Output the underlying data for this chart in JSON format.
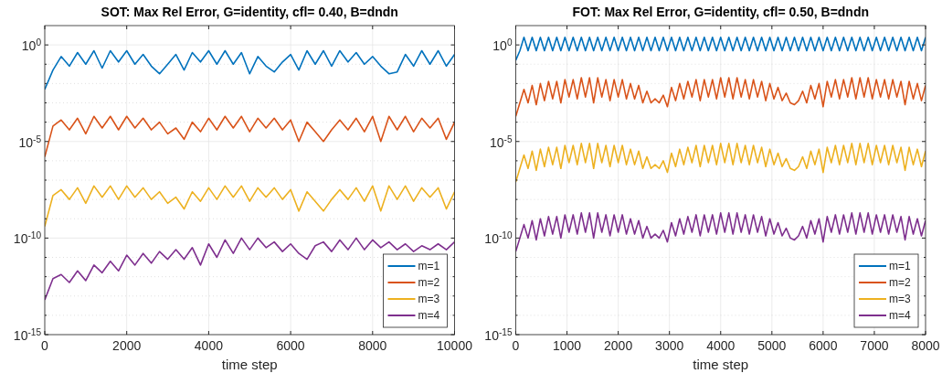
{
  "chart_data": [
    {
      "type": "line",
      "title": "SOT: Max Rel Error, G=identity, cfl= 0.40, B=dndn",
      "xlabel": "time step",
      "log": "y",
      "grid": true,
      "legend": "bottom right",
      "xlim": [
        0,
        10000
      ],
      "xticks": [
        0,
        2000,
        4000,
        6000,
        8000,
        10000
      ],
      "ylim": [
        1e-15,
        10
      ],
      "yticks": [
        {
          "value": 1e-15,
          "label": "10$^{-15}$"
        },
        {
          "value": 1e-14,
          "label": null
        },
        {
          "value": 1e-13,
          "label": null
        },
        {
          "value": 1e-12,
          "label": null
        },
        {
          "value": 1e-11,
          "label": null
        },
        {
          "value": 1e-10,
          "label": "10$^{-10}$"
        },
        {
          "value": 1e-09,
          "label": null
        },
        {
          "value": 1e-08,
          "label": null
        },
        {
          "value": 1e-07,
          "label": null
        },
        {
          "value": 1e-06,
          "label": null
        },
        {
          "value": 1e-05,
          "label": "10$^{-5}$"
        },
        {
          "value": 0.0001,
          "label": null
        },
        {
          "value": 0.001,
          "label": null
        },
        {
          "value": 0.01,
          "label": null
        },
        {
          "value": 0.1,
          "label": null
        },
        {
          "value": 1,
          "label": "10$^{0}$"
        }
      ],
      "x": [
        0,
        200,
        400,
        600,
        800,
        1000,
        1200,
        1400,
        1600,
        1800,
        2000,
        2200,
        2400,
        2600,
        2800,
        3000,
        3200,
        3400,
        3600,
        3800,
        4000,
        4200,
        4400,
        4600,
        4800,
        5000,
        5200,
        5400,
        5600,
        5800,
        6000,
        6200,
        6400,
        6600,
        6800,
        7000,
        7200,
        7400,
        7600,
        7800,
        8000,
        8200,
        8400,
        8600,
        8800,
        9000,
        9200,
        9400,
        9600,
        9800,
        10000
      ],
      "series": [
        {
          "name": "m=1",
          "color": "#0072bd",
          "values": [
            0.005,
            0.05,
            0.25,
            0.08,
            0.4,
            0.1,
            0.5,
            0.063,
            0.5,
            0.13,
            0.5,
            0.1,
            0.32,
            0.08,
            0.032,
            0.1,
            0.32,
            0.05,
            0.4,
            0.13,
            0.5,
            0.1,
            0.5,
            0.1,
            0.4,
            0.032,
            0.25,
            0.08,
            0.04,
            0.13,
            0.32,
            0.05,
            0.5,
            0.1,
            0.5,
            0.08,
            0.5,
            0.13,
            0.4,
            0.1,
            0.25,
            0.08,
            0.032,
            0.04,
            0.32,
            0.08,
            0.5,
            0.1,
            0.5,
            0.08,
            0.32
          ]
        },
        {
          "name": "m=2",
          "color": "#d95319",
          "values": [
            1.6e-06,
            6.3e-05,
            0.00013,
            4e-05,
            0.00016,
            2.5e-05,
            0.0002,
            5e-05,
            0.0002,
            4e-05,
            0.0002,
            5e-05,
            0.00016,
            4e-05,
            0.0001,
            2.5e-05,
            5e-05,
            1.3e-05,
            0.0001,
            3.2e-05,
            0.00016,
            4e-05,
            0.0002,
            5e-05,
            0.0002,
            3.2e-05,
            0.00016,
            5e-05,
            0.00016,
            4e-05,
            0.00013,
            1e-05,
            0.0001,
            3.2e-05,
            1e-05,
            4e-05,
            0.00013,
            4e-05,
            0.00016,
            3.2e-05,
            0.0002,
            1e-05,
            0.0002,
            4e-05,
            0.0002,
            3.2e-05,
            0.00016,
            5e-05,
            0.00016,
            1.3e-05,
            0.0001
          ]
        },
        {
          "name": "m=3",
          "color": "#edb120",
          "values": [
            4e-10,
            1.6e-08,
            3.2e-08,
            1e-08,
            4e-08,
            6.3e-09,
            5e-08,
            1.3e-08,
            5e-08,
            1e-08,
            5e-08,
            1.3e-08,
            4e-08,
            1e-08,
            2.5e-08,
            6.3e-09,
            1.3e-08,
            3.2e-09,
            2.5e-08,
            8e-09,
            4e-08,
            1e-08,
            5e-08,
            1.3e-08,
            5e-08,
            8e-09,
            4e-08,
            1.3e-08,
            4e-08,
            1e-08,
            3.2e-08,
            2.5e-09,
            2.5e-08,
            8e-09,
            2.5e-09,
            1e-08,
            3.2e-08,
            1e-08,
            4e-08,
            8e-09,
            5e-08,
            2.5e-09,
            5e-08,
            1e-08,
            5e-08,
            8e-09,
            4e-08,
            1.3e-08,
            4e-08,
            3.2e-09,
            2.5e-08
          ]
        },
        {
          "name": "m=4",
          "color": "#7e2f8e",
          "values": [
            6.3e-14,
            8e-13,
            1.3e-12,
            5e-13,
            2e-12,
            6.3e-13,
            4e-12,
            1.6e-12,
            6.3e-12,
            2e-12,
            1.3e-11,
            4e-12,
            1.6e-11,
            5e-12,
            2e-11,
            8e-12,
            2.5e-11,
            8e-12,
            3.2e-11,
            4e-12,
            5e-11,
            1e-11,
            8e-11,
            1.6e-11,
            1e-10,
            2.5e-11,
            1e-10,
            3.2e-11,
            6.3e-11,
            2e-11,
            5e-11,
            1.6e-11,
            8e-12,
            4e-11,
            6.3e-11,
            2e-11,
            8e-11,
            2.5e-11,
            1e-10,
            2.5e-11,
            8e-11,
            3.2e-11,
            6.3e-11,
            2.5e-11,
            5e-11,
            2e-11,
            4e-11,
            2.5e-11,
            5e-11,
            2.5e-11,
            6.3e-11
          ]
        }
      ]
    },
    {
      "type": "line",
      "title": "FOT: Max Rel Error, G=identity, cfl= 0.50, B=dndn",
      "xlabel": "time step",
      "log": "y",
      "grid": true,
      "legend": "bottom right",
      "xlim": [
        0,
        8000
      ],
      "xticks": [
        0,
        1000,
        2000,
        3000,
        4000,
        5000,
        6000,
        7000,
        8000
      ],
      "ylim": [
        1e-15,
        10
      ],
      "yticks": [
        {
          "value": 1e-15,
          "label": "10$^{-15}$"
        },
        {
          "value": 1e-14,
          "label": null
        },
        {
          "value": 1e-13,
          "label": null
        },
        {
          "value": 1e-12,
          "label": null
        },
        {
          "value": 1e-11,
          "label": null
        },
        {
          "value": 1e-10,
          "label": "10$^{-10}$"
        },
        {
          "value": 1e-09,
          "label": null
        },
        {
          "value": 1e-08,
          "label": null
        },
        {
          "value": 1e-07,
          "label": null
        },
        {
          "value": 1e-06,
          "label": null
        },
        {
          "value": 1e-05,
          "label": "10$^{-5}$"
        },
        {
          "value": 0.0001,
          "label": null
        },
        {
          "value": 0.001,
          "label": null
        },
        {
          "value": 0.01,
          "label": null
        },
        {
          "value": 0.1,
          "label": null
        },
        {
          "value": 1,
          "label": "10$^{0}$"
        }
      ],
      "x": [
        0,
        80,
        160,
        240,
        320,
        400,
        480,
        560,
        640,
        720,
        800,
        880,
        960,
        1040,
        1120,
        1200,
        1280,
        1360,
        1440,
        1520,
        1600,
        1680,
        1760,
        1840,
        1920,
        2000,
        2080,
        2160,
        2240,
        2320,
        2400,
        2480,
        2560,
        2640,
        2720,
        2800,
        2880,
        2960,
        3040,
        3120,
        3200,
        3280,
        3360,
        3440,
        3520,
        3600,
        3680,
        3760,
        3840,
        3920,
        4000,
        4080,
        4160,
        4240,
        4320,
        4400,
        4480,
        4560,
        4640,
        4720,
        4800,
        4880,
        4960,
        5040,
        5120,
        5200,
        5280,
        5360,
        5440,
        5520,
        5600,
        5680,
        5760,
        5840,
        5920,
        6000,
        6080,
        6160,
        6240,
        6320,
        6400,
        6480,
        6560,
        6640,
        6720,
        6800,
        6880,
        6960,
        7040,
        7120,
        7200,
        7280,
        7360,
        7440,
        7520,
        7600,
        7680,
        7760,
        7840,
        7920,
        8000
      ],
      "series": [
        {
          "name": "m=1",
          "color": "#0072bd",
          "values": [
            0.16,
            0.5,
            2.5,
            0.5,
            2.5,
            0.5,
            2.5,
            0.5,
            2.5,
            0.5,
            2.5,
            0.5,
            2.5,
            0.5,
            2.5,
            0.5,
            2.5,
            0.5,
            2.5,
            0.5,
            2.5,
            0.5,
            2.5,
            0.5,
            2.5,
            0.5,
            2.5,
            0.5,
            2.5,
            0.5,
            2.5,
            0.5,
            2.5,
            0.5,
            2.5,
            0.5,
            2.5,
            0.5,
            2.5,
            0.5,
            2.5,
            0.5,
            2.5,
            0.5,
            2.5,
            0.5,
            2.5,
            0.5,
            2.5,
            0.5,
            2.5,
            0.5,
            2.5,
            0.5,
            2.5,
            0.5,
            2.5,
            0.5,
            2.5,
            0.5,
            2.5,
            0.5,
            2.5,
            0.5,
            2.5,
            0.5,
            2.5,
            0.5,
            2.5,
            0.5,
            2.5,
            0.5,
            2.5,
            0.5,
            2.5,
            0.5,
            2.5,
            0.5,
            2.5,
            0.5,
            2.5,
            0.5,
            2.5,
            0.5,
            2.5,
            0.5,
            2.5,
            0.5,
            2.5,
            0.5,
            2.5,
            0.5,
            2.5,
            0.5,
            2.5,
            0.5,
            2.5,
            0.5,
            2.5,
            0.5,
            2.5
          ]
        },
        {
          "name": "m=2",
          "color": "#d95319",
          "values": [
            0.0002,
            0.001,
            0.005,
            0.001,
            0.008,
            0.0008,
            0.01,
            0.0013,
            0.013,
            0.0016,
            0.013,
            0.001,
            0.016,
            0.002,
            0.016,
            0.0016,
            0.02,
            0.002,
            0.02,
            0.001,
            0.02,
            0.002,
            0.016,
            0.0013,
            0.016,
            0.002,
            0.016,
            0.0016,
            0.01,
            0.0016,
            0.008,
            0.001,
            0.004,
            0.001,
            0.0016,
            0.001,
            0.0025,
            0.00063,
            0.0063,
            0.0013,
            0.01,
            0.0016,
            0.013,
            0.002,
            0.016,
            0.0013,
            0.016,
            0.002,
            0.016,
            0.0016,
            0.02,
            0.002,
            0.02,
            0.0016,
            0.02,
            0.002,
            0.016,
            0.0016,
            0.016,
            0.002,
            0.013,
            0.0013,
            0.01,
            0.0016,
            0.0063,
            0.0013,
            0.0032,
            0.001,
            0.0008,
            0.0013,
            0.004,
            0.001,
            0.008,
            0.0016,
            0.01,
            0.00063,
            0.013,
            0.002,
            0.016,
            0.0016,
            0.016,
            0.002,
            0.02,
            0.0016,
            0.02,
            0.002,
            0.02,
            0.0016,
            0.016,
            0.002,
            0.016,
            0.0016,
            0.016,
            0.002,
            0.013,
            0.0008,
            0.013,
            0.0016,
            0.01,
            0.0013,
            0.008
          ]
        },
        {
          "name": "m=3",
          "color": "#edb120",
          "values": [
            8e-08,
            4e-07,
            2e-06,
            4e-07,
            3.2e-06,
            3.2e-07,
            4e-06,
            5e-07,
            5e-06,
            6.3e-07,
            5e-06,
            4e-07,
            6.3e-06,
            8e-07,
            6.3e-06,
            6.3e-07,
            8e-06,
            8e-07,
            8e-06,
            4e-07,
            8e-06,
            8e-07,
            6.3e-06,
            5e-07,
            6.3e-06,
            8e-07,
            6.3e-06,
            6.3e-07,
            4e-06,
            6.3e-07,
            3.2e-06,
            4e-07,
            1.6e-06,
            4e-07,
            6.3e-07,
            4e-07,
            1e-06,
            2.5e-07,
            2.5e-06,
            5e-07,
            4e-06,
            6.3e-07,
            5e-06,
            8e-07,
            6.3e-06,
            5e-07,
            6.3e-06,
            8e-07,
            6.3e-06,
            6.3e-07,
            8e-06,
            8e-07,
            8e-06,
            6.3e-07,
            8e-06,
            8e-07,
            6.3e-06,
            6.3e-07,
            6.3e-06,
            8e-07,
            5e-06,
            5e-07,
            4e-06,
            6.3e-07,
            2.5e-06,
            5e-07,
            1.3e-06,
            4e-07,
            3.2e-07,
            5e-07,
            1.6e-06,
            4e-07,
            3.2e-06,
            6.3e-07,
            4e-06,
            2.5e-07,
            5e-06,
            8e-07,
            6.3e-06,
            6.3e-07,
            6.3e-06,
            8e-07,
            8e-06,
            6.3e-07,
            8e-06,
            8e-07,
            8e-06,
            6.3e-07,
            6.3e-06,
            8e-07,
            6.3e-06,
            6.3e-07,
            6.3e-06,
            8e-07,
            5e-06,
            3.2e-07,
            5e-06,
            6.3e-07,
            4e-06,
            5e-07,
            3.2e-06
          ]
        },
        {
          "name": "m=4",
          "color": "#7e2f8e",
          "values": [
            2e-11,
            1e-10,
            5e-10,
            1e-10,
            8e-10,
            8e-11,
            1e-09,
            1.3e-10,
            1.3e-09,
            1.6e-10,
            1.3e-09,
            1e-10,
            1.6e-09,
            2e-10,
            1.6e-09,
            1.6e-10,
            2e-09,
            2e-10,
            2e-09,
            1e-10,
            2e-09,
            2e-10,
            1.6e-09,
            1.3e-10,
            1.6e-09,
            2e-10,
            1.6e-09,
            1.6e-10,
            1e-09,
            1.6e-10,
            8e-10,
            1e-10,
            4e-10,
            1e-10,
            1.6e-10,
            1e-10,
            2.5e-10,
            6.3e-11,
            6.3e-10,
            1.3e-10,
            1e-09,
            1.6e-10,
            1.3e-09,
            2e-10,
            1.6e-09,
            1.3e-10,
            1.6e-09,
            2e-10,
            1.6e-09,
            1.6e-10,
            2e-09,
            2e-10,
            2e-09,
            1.6e-10,
            2e-09,
            2e-10,
            1.6e-09,
            1.6e-10,
            1.6e-09,
            2e-10,
            1.3e-09,
            1.3e-10,
            1e-09,
            1.6e-10,
            6.3e-10,
            1.3e-10,
            3.2e-10,
            1e-10,
            8e-11,
            1.3e-10,
            4e-10,
            1e-10,
            8e-10,
            1.6e-10,
            1e-09,
            6.3e-11,
            1.3e-09,
            2e-10,
            1.6e-09,
            1.6e-10,
            1.6e-09,
            2e-10,
            2e-09,
            1.6e-10,
            2e-09,
            2e-10,
            2e-09,
            1.6e-10,
            1.6e-09,
            2e-10,
            1.6e-09,
            1.6e-10,
            1.6e-09,
            2e-10,
            1.3e-09,
            8e-11,
            1.3e-09,
            1.6e-10,
            1e-09,
            1.3e-10,
            8e-10
          ]
        }
      ]
    }
  ]
}
